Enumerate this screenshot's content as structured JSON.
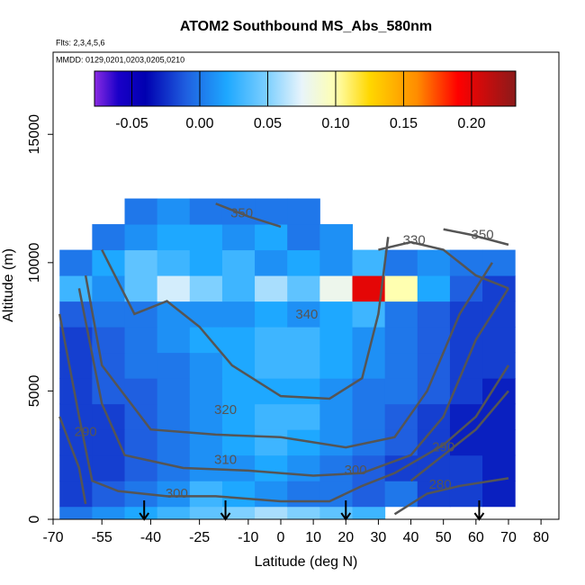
{
  "chart_data": {
    "type": "heatmap",
    "title": "ATOM2 Southbound MS_Abs_580nm",
    "notes": [
      "Flts: 2,3,4,5,6",
      "MMDD: 0129,0201,0203,0205,0210"
    ],
    "x_label": "Latitude (deg N)",
    "y_label": "Altitude (m)",
    "xlim": [
      -70,
      85.5
    ],
    "ylim": [
      0,
      18200
    ],
    "xticks": [
      -70,
      -55,
      -40,
      -25,
      -10,
      0,
      10,
      20,
      30,
      40,
      50,
      60,
      70,
      80
    ],
    "yticks": [
      0,
      5000,
      10000,
      15000
    ],
    "x_edges": [
      -68,
      -58,
      -48,
      -38,
      -28,
      -18,
      -8,
      2,
      12,
      22,
      32,
      42,
      52,
      62,
      72
    ],
    "y_edges": [
      0,
      500,
      1500,
      2500,
      3500,
      4500,
      5500,
      6500,
      7500,
      8500,
      9500,
      10500,
      11500,
      12500
    ],
    "values": [
      [
        0.0,
        0.01,
        0.02,
        0.03,
        0.04,
        0.05,
        0.06,
        0.05,
        0.04,
        0.03,
        null,
        null,
        null,
        null
      ],
      [
        -0.02,
        -0.01,
        0.0,
        0.01,
        0.03,
        0.02,
        0.01,
        0.0,
        0.0,
        -0.01,
        0.0,
        -0.02,
        -0.02,
        -0.03
      ],
      [
        -0.02,
        -0.02,
        -0.01,
        0.0,
        0.01,
        0.01,
        0.02,
        0.01,
        0.0,
        -0.01,
        -0.02,
        -0.02,
        -0.02,
        -0.03
      ],
      [
        -0.02,
        -0.02,
        -0.01,
        0.0,
        0.01,
        0.02,
        0.03,
        0.02,
        0.01,
        0.0,
        -0.01,
        -0.02,
        -0.03,
        -0.03
      ],
      [
        -0.02,
        -0.02,
        -0.01,
        0.0,
        0.01,
        0.02,
        0.03,
        0.03,
        0.01,
        0.0,
        -0.01,
        -0.02,
        -0.03,
        -0.03
      ],
      [
        -0.02,
        -0.01,
        -0.01,
        0.0,
        0.01,
        0.02,
        0.02,
        0.02,
        0.01,
        0.0,
        0.0,
        -0.01,
        -0.02,
        -0.03
      ],
      [
        -0.02,
        -0.01,
        0.0,
        0.0,
        0.01,
        0.02,
        0.03,
        0.03,
        0.02,
        0.01,
        0.0,
        -0.01,
        -0.02,
        -0.02
      ],
      [
        -0.02,
        -0.01,
        0.0,
        0.01,
        0.02,
        0.02,
        0.03,
        0.03,
        0.02,
        0.01,
        0.0,
        -0.01,
        -0.02,
        -0.02
      ],
      [
        -0.01,
        0.0,
        0.0,
        0.01,
        0.01,
        0.01,
        0.02,
        0.01,
        0.02,
        0.03,
        0.0,
        -0.01,
        -0.02,
        -0.02
      ],
      [
        0.03,
        0.01,
        0.04,
        0.07,
        0.05,
        0.03,
        0.06,
        0.04,
        0.08,
        0.2,
        0.1,
        0.02,
        -0.01,
        -0.02
      ],
      [
        0.0,
        0.02,
        0.04,
        0.03,
        0.02,
        0.03,
        0.01,
        0.02,
        0.01,
        0.03,
        0.0,
        0.01,
        0.0,
        0.0
      ],
      [
        null,
        0.0,
        0.01,
        0.02,
        0.02,
        0.01,
        0.02,
        0.0,
        0.01,
        null,
        null,
        null,
        null,
        null
      ],
      [
        null,
        null,
        0.0,
        0.01,
        0.0,
        0.0,
        0.0,
        0.0,
        null,
        null,
        null,
        null,
        null,
        null
      ]
    ],
    "zlim": [
      -0.0775,
      0.2325
    ],
    "zticks": [
      -0.05,
      {
        "value": 0,
        "label": "0.00"
      },
      0.05,
      {
        "value": 0.1,
        "label": "0.10"
      },
      0.15,
      {
        "value": 0.2,
        "label": "0.20"
      }
    ],
    "colormap": [
      [
        -0.0775,
        "#8a2be2"
      ],
      [
        -0.06,
        "#1a00c8"
      ],
      [
        -0.04,
        "#0000b0"
      ],
      [
        -0.01,
        "#1f5fe0"
      ],
      [
        0.02,
        "#1ea8ff"
      ],
      [
        0.05,
        "#7fd0ff"
      ],
      [
        0.075,
        "#e8f4fb"
      ],
      [
        0.1,
        "#ffffb0"
      ],
      [
        0.125,
        "#ffd700"
      ],
      [
        0.16,
        "#ff8c00"
      ],
      [
        0.19,
        "#ff0000"
      ],
      [
        0.2325,
        "#8b1a1a"
      ]
    ],
    "contour_color": "#555555",
    "contours": [
      {
        "level": 350,
        "x": [
          -20,
          -10,
          0,
          null,
          50,
          58,
          70
        ],
        "y": [
          12300,
          11800,
          11400,
          null,
          11300,
          11100,
          10700
        ],
        "labels": [
          [
            -12,
            11900
          ],
          [
            62,
            11060
          ]
        ]
      },
      {
        "level": 340,
        "x": [
          -55,
          -45,
          -35,
          -25,
          -15,
          0,
          15,
          25,
          30,
          33
        ],
        "y": [
          10500,
          8000,
          8500,
          7500,
          6000,
          4800,
          4700,
          5500,
          8000,
          11000
        ],
        "labels": [
          [
            8,
            7960
          ]
        ]
      },
      {
        "level": 330,
        "x": [
          30,
          40,
          50,
          60,
          70
        ],
        "y": [
          10500,
          10800,
          10500,
          9500,
          9000
        ],
        "labels": [
          [
            41,
            10850
          ]
        ]
      },
      {
        "level": 320,
        "x": [
          -60,
          -55,
          -40,
          -20,
          0,
          20,
          35,
          45,
          55,
          65
        ],
        "y": [
          9500,
          6000,
          3500,
          3300,
          3200,
          2800,
          3200,
          5000,
          8000,
          10000
        ],
        "labels": [
          [
            -17,
            4250
          ]
        ]
      },
      {
        "level": 310,
        "x": [
          -62,
          -55,
          -48,
          -30,
          -10,
          10,
          25,
          40,
          50,
          60,
          70
        ],
        "y": [
          9000,
          4500,
          2500,
          2000,
          1900,
          1700,
          1800,
          2500,
          4000,
          7000,
          9000
        ],
        "labels": [
          [
            -17,
            2300
          ]
        ]
      },
      {
        "level": 300,
        "x": [
          -68,
          -62,
          -58,
          -50,
          -35,
          -20,
          0,
          15,
          25,
          35,
          50,
          60,
          70
        ],
        "y": [
          8000,
          4000,
          1500,
          1100,
          900,
          900,
          700,
          700,
          1300,
          1800,
          2900,
          4000,
          6000
        ],
        "labels": [
          [
            -32,
            985
          ],
          [
            23,
            1900
          ]
        ]
      },
      {
        "level": 290,
        "x": [
          -68,
          -62,
          -60,
          null,
          40,
          50,
          60,
          70
        ],
        "y": [
          4000,
          2000,
          600,
          null,
          1500,
          2500,
          3500,
          5000
        ],
        "labels": [
          [
            -60,
            3380
          ],
          [
            50,
            2780
          ]
        ]
      },
      {
        "level": 280,
        "x": [
          35,
          45,
          55,
          70
        ],
        "y": [
          200,
          1000,
          1300,
          1600
        ],
        "labels": [
          [
            49,
            1340
          ]
        ]
      }
    ],
    "arrows": [
      -42,
      -17,
      20,
      61
    ]
  }
}
